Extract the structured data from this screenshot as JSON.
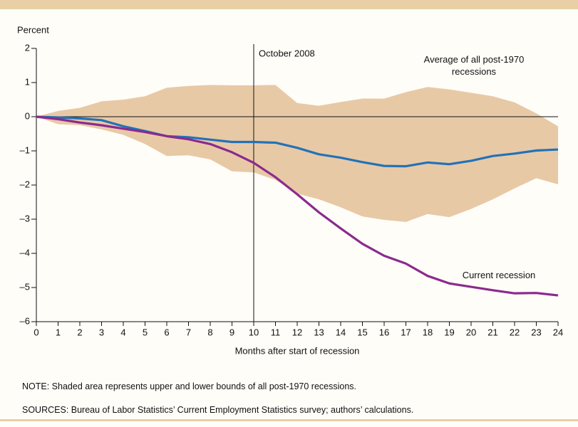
{
  "chart_data": {
    "type": "line",
    "y_label": "Percent",
    "x_label": "Months after start of recession",
    "x": [
      0,
      1,
      2,
      3,
      4,
      5,
      6,
      7,
      8,
      9,
      10,
      11,
      12,
      13,
      14,
      15,
      16,
      17,
      18,
      19,
      20,
      21,
      22,
      23,
      24
    ],
    "xlim": [
      0,
      24
    ],
    "xticks": [
      0,
      1,
      2,
      3,
      4,
      5,
      6,
      7,
      8,
      9,
      10,
      11,
      12,
      13,
      14,
      15,
      16,
      17,
      18,
      19,
      20,
      21,
      22,
      23,
      24
    ],
    "ylim": [
      -6,
      2
    ],
    "yticks": [
      {
        "value": -6,
        "label": "–6"
      },
      {
        "value": -5,
        "label": "–5"
      },
      {
        "value": -4,
        "label": "–4"
      },
      {
        "value": -3,
        "label": "–3"
      },
      {
        "value": -2,
        "label": "–2"
      },
      {
        "value": -1,
        "label": "–1"
      },
      0,
      1,
      2
    ],
    "band": {
      "color": "#e8c9a6",
      "upper": [
        0,
        0.17,
        0.26,
        0.45,
        0.5,
        0.6,
        0.85,
        0.9,
        0.93,
        0.92,
        0.92,
        0.93,
        0.4,
        0.32,
        0.43,
        0.53,
        0.53,
        0.72,
        0.87,
        0.8,
        0.7,
        0.6,
        0.42,
        0.1,
        -0.28
      ],
      "lower": [
        0,
        -0.22,
        -0.25,
        -0.37,
        -0.53,
        -0.8,
        -1.15,
        -1.13,
        -1.25,
        -1.6,
        -1.63,
        -1.85,
        -2.25,
        -2.42,
        -2.65,
        -2.92,
        -3.02,
        -3.08,
        -2.85,
        -2.94,
        -2.7,
        -2.42,
        -2.1,
        -1.8,
        -1.98
      ]
    },
    "series": [
      {
        "name": "Average of all post-1970 recessions",
        "color": "#2272b8",
        "values": [
          0,
          -0.02,
          -0.05,
          -0.1,
          -0.28,
          -0.42,
          -0.57,
          -0.6,
          -0.67,
          -0.74,
          -0.74,
          -0.76,
          -0.91,
          -1.1,
          -1.2,
          -1.33,
          -1.44,
          -1.45,
          -1.34,
          -1.39,
          -1.29,
          -1.15,
          -1.08,
          -0.99,
          -0.96
        ]
      },
      {
        "name": "Current recession",
        "color": "#8b2a8e",
        "values": [
          0,
          -0.07,
          -0.17,
          -0.25,
          -0.35,
          -0.45,
          -0.57,
          -0.66,
          -0.8,
          -1.04,
          -1.35,
          -1.77,
          -2.27,
          -2.8,
          -3.27,
          -3.72,
          -4.07,
          -4.3,
          -4.66,
          -4.88,
          -4.98,
          -5.08,
          -5.17,
          -5.16,
          -5.23
        ]
      }
    ],
    "annotations": [
      {
        "text": "October 2008",
        "x": 10
      }
    ],
    "note": "NOTE: Shaded area represents upper and lower bounds of all post-1970 recessions.",
    "sources": "SOURCES: Bureau of Labor Statistics’ Current Employment Statistics survey; authors’ calculations."
  }
}
